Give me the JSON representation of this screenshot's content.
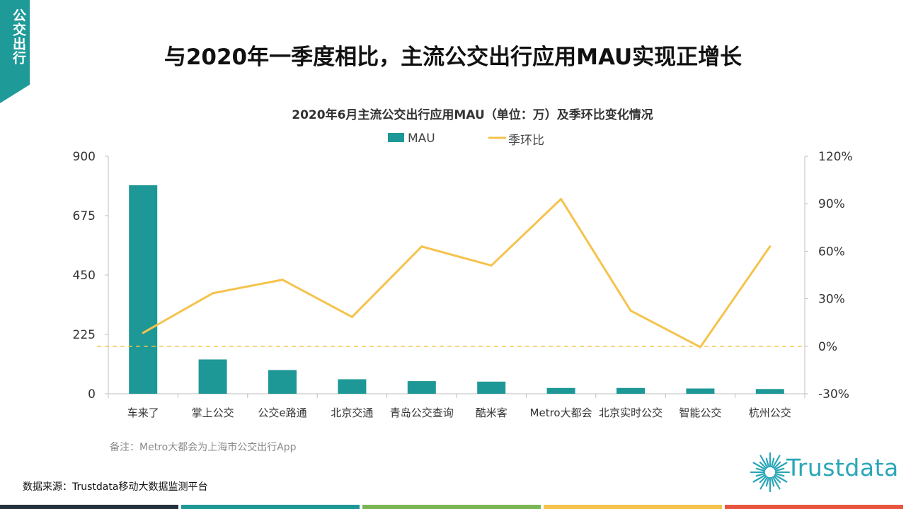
{
  "side_tab": {
    "label": "公交出行",
    "color": "#1e9a98"
  },
  "header": {
    "title": "与2020年一季度相比，主流公交出行应用MAU实现正增长"
  },
  "note": "备注：Metro大都会为上海市公交出行App",
  "source": "数据来源：Trustdata移动大数据监测平台",
  "logo": {
    "text": "Trustdata",
    "icon": "sunburst-logo-icon"
  },
  "colors": {
    "bar": "#1e9896",
    "line": "#f5c34c",
    "axis": "#bfbfbf",
    "bottom_bar": [
      "#23323d",
      "#1e9896",
      "#7bb655",
      "#f5c34c",
      "#e8553f"
    ]
  },
  "chart_data": {
    "type": "bar",
    "title": "2020年6月主流公交出行应用MAU（单位：万）及季环比变化情况",
    "categories": [
      "车来了",
      "掌上公交",
      "公交e路通",
      "北京交通",
      "青岛公交查询",
      "酷米客",
      "Metro大都会",
      "北京实时公交",
      "智能公交",
      "杭州公交"
    ],
    "series": [
      {
        "name": "MAU",
        "type": "bar",
        "axis": "left",
        "values": [
          790,
          130,
          90,
          55,
          48,
          46,
          22,
          22,
          20,
          18
        ]
      },
      {
        "name": "季环比",
        "type": "line",
        "axis": "right",
        "values": [
          8.5,
          33.5,
          42,
          18.5,
          63,
          51,
          93,
          22.5,
          -0.5,
          63
        ]
      }
    ],
    "y_left": {
      "min": 0,
      "max": 900,
      "ticks": [
        "0",
        "225",
        "450",
        "675",
        "900"
      ],
      "tick_values": [
        0,
        225,
        450,
        675,
        900
      ]
    },
    "y_right": {
      "min": -30,
      "max": 120,
      "ticks": [
        "-30%",
        "0%",
        "30%",
        "60%",
        "90%",
        "120%"
      ],
      "tick_values": [
        -30,
        0,
        30,
        60,
        90,
        120
      ]
    },
    "reference_line": {
      "axis": "right",
      "value": 0,
      "style": "dashed"
    },
    "legend": {
      "position": "top-center",
      "items": [
        "MAU",
        "季环比"
      ]
    },
    "grid": false
  }
}
